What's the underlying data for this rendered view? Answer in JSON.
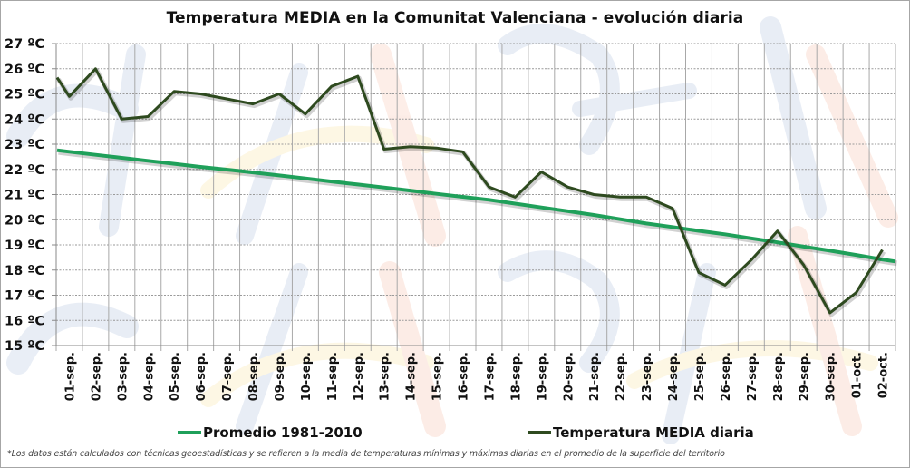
{
  "chart_data": {
    "type": "line",
    "title": "Temperatura MEDIA en la Comunitat Valenciana - evolución diaria",
    "xlabel": "",
    "ylabel": "",
    "ylim": [
      15,
      27
    ],
    "y_tick_values": [
      15,
      16,
      17,
      18,
      19,
      20,
      21,
      22,
      23,
      24,
      25,
      26,
      27
    ],
    "y_tick_labels": [
      "15 ºC",
      "16 ºC",
      "17 ºC",
      "18 ºC",
      "19 ºC",
      "20 ºC",
      "21 ºC",
      "22 ºC",
      "23 ºC",
      "24 ºC",
      "25 ºC",
      "26 ºC",
      "27 ºC"
    ],
    "grid": true,
    "legend_position": "bottom",
    "categories": [
      "01-sep.",
      "02-sep.",
      "03-sep.",
      "04-sep.",
      "05-sep.",
      "06-sep.",
      "07-sep.",
      "08-sep.",
      "09-sep.",
      "10-sep.",
      "11-sep.",
      "12-sep.",
      "13-sep.",
      "14-sep.",
      "15-sep.",
      "16-sep.",
      "17-sep.",
      "18-sep.",
      "19-sep.",
      "20-sep.",
      "21-sep.",
      "22-sep.",
      "23-sep.",
      "24-sep.",
      "25-sep.",
      "26-sep.",
      "27-sep.",
      "28-sep.",
      "29-sep.",
      "30-sep.",
      "01-oct.",
      "02-oct."
    ],
    "series": [
      {
        "name": "Promedio 1981-2010",
        "color": "#1fa05a",
        "values": [
          22.7,
          22.58,
          22.46,
          22.34,
          22.22,
          22.1,
          21.99,
          21.88,
          21.76,
          21.64,
          21.52,
          21.4,
          21.28,
          21.16,
          21.03,
          20.91,
          20.79,
          20.64,
          20.49,
          20.34,
          20.19,
          20.02,
          19.85,
          19.71,
          19.56,
          19.42,
          19.26,
          19.1,
          18.93,
          18.77,
          18.6,
          18.42
        ],
        "edge_start": 22.76,
        "edge_end": 18.34
      },
      {
        "name": "Temperatura MEDIA diaria",
        "color": "#2e4a1f",
        "values": [
          24.9,
          26.0,
          24.0,
          24.1,
          25.1,
          25.0,
          24.8,
          24.6,
          25.0,
          24.2,
          25.3,
          25.7,
          22.8,
          22.9,
          22.85,
          22.7,
          21.3,
          20.9,
          21.9,
          21.3,
          21.0,
          20.9,
          20.9,
          20.45,
          17.9,
          17.4,
          18.4,
          19.55,
          18.2,
          16.3,
          17.1,
          18.8
        ],
        "edge_start": 25.65
      }
    ]
  },
  "legend": {
    "items": [
      {
        "label": "Promedio 1981-2010",
        "color": "#1fa05a"
      },
      {
        "label": "Temperatura MEDIA diaria",
        "color": "#2e4a1f"
      }
    ]
  },
  "footnote": "*Los datos están calculados con técnicas geoestadísticas y se refieren a la media de temperaturas mínimas y máximas diarias en el promedio de la superficie del territorio"
}
